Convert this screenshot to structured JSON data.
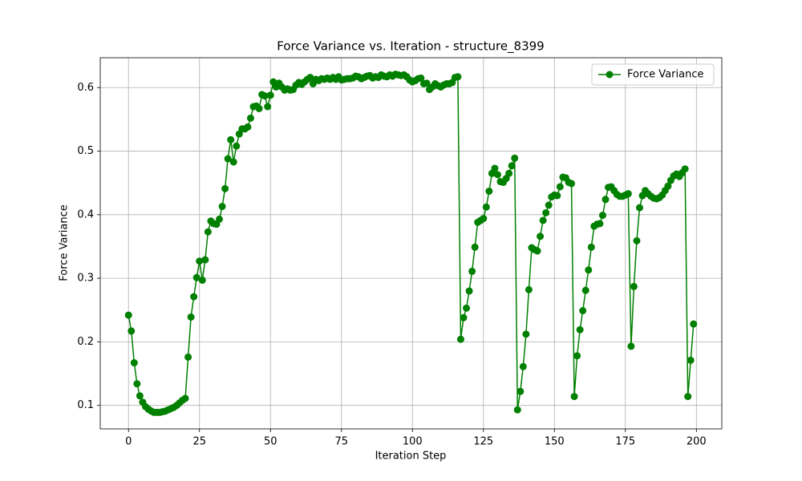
{
  "chart_data": {
    "type": "line",
    "title": "Force Variance vs. Iteration - structure_8399",
    "x_label": "Iteration Step",
    "y_label": "Force Variance",
    "x": [
      0,
      1,
      2,
      3,
      4,
      5,
      6,
      7,
      8,
      9,
      10,
      11,
      12,
      13,
      14,
      15,
      16,
      17,
      18,
      19,
      20,
      21,
      22,
      23,
      24,
      25,
      26,
      27,
      28,
      29,
      30,
      31,
      32,
      33,
      34,
      35,
      36,
      37,
      38,
      39,
      40,
      41,
      42,
      43,
      44,
      45,
      46,
      47,
      48,
      49,
      50,
      51,
      52,
      53,
      54,
      55,
      56,
      57,
      58,
      59,
      60,
      61,
      62,
      63,
      64,
      65,
      66,
      67,
      68,
      69,
      70,
      71,
      72,
      73,
      74,
      75,
      76,
      77,
      78,
      79,
      80,
      81,
      82,
      83,
      84,
      85,
      86,
      87,
      88,
      89,
      90,
      91,
      92,
      93,
      94,
      95,
      96,
      97,
      98,
      99,
      100,
      101,
      102,
      103,
      104,
      105,
      106,
      107,
      108,
      109,
      110,
      111,
      112,
      113,
      114,
      115,
      116,
      117,
      118,
      119,
      120,
      121,
      122,
      123,
      124,
      125,
      126,
      127,
      128,
      129,
      130,
      131,
      132,
      133,
      134,
      135,
      136,
      137,
      138,
      139,
      140,
      141,
      142,
      143,
      144,
      145,
      146,
      147,
      148,
      149,
      150,
      151,
      152,
      153,
      154,
      155,
      156,
      157,
      158,
      159,
      160,
      161,
      162,
      163,
      164,
      165,
      166,
      167,
      168,
      169,
      170,
      171,
      172,
      173,
      174,
      175,
      176,
      177,
      178,
      179,
      180,
      181,
      182,
      183,
      184,
      185,
      186,
      187,
      188,
      189,
      190,
      191,
      192,
      193,
      194,
      195,
      196,
      197,
      198,
      199
    ],
    "series": [
      {
        "name": "Force Variance",
        "color": "#008000",
        "values": [
          0.242,
          0.217,
          0.167,
          0.134,
          0.115,
          0.105,
          0.098,
          0.094,
          0.091,
          0.089,
          0.089,
          0.089,
          0.09,
          0.091,
          0.093,
          0.095,
          0.097,
          0.1,
          0.104,
          0.108,
          0.111,
          0.176,
          0.239,
          0.271,
          0.301,
          0.327,
          0.297,
          0.329,
          0.373,
          0.39,
          0.386,
          0.385,
          0.393,
          0.413,
          0.441,
          0.488,
          0.518,
          0.483,
          0.508,
          0.527,
          0.535,
          0.535,
          0.538,
          0.552,
          0.57,
          0.571,
          0.567,
          0.589,
          0.587,
          0.57,
          0.588,
          0.609,
          0.601,
          0.607,
          0.601,
          0.596,
          0.598,
          0.596,
          0.597,
          0.604,
          0.608,
          0.605,
          0.609,
          0.613,
          0.616,
          0.606,
          0.613,
          0.611,
          0.614,
          0.613,
          0.615,
          0.613,
          0.616,
          0.613,
          0.617,
          0.612,
          0.613,
          0.614,
          0.614,
          0.615,
          0.618,
          0.617,
          0.614,
          0.616,
          0.618,
          0.619,
          0.615,
          0.617,
          0.616,
          0.62,
          0.618,
          0.617,
          0.62,
          0.618,
          0.621,
          0.62,
          0.619,
          0.62,
          0.617,
          0.612,
          0.609,
          0.611,
          0.614,
          0.615,
          0.606,
          0.607,
          0.597,
          0.601,
          0.606,
          0.603,
          0.601,
          0.604,
          0.606,
          0.606,
          0.608,
          0.616,
          0.617,
          0.204,
          0.238,
          0.253,
          0.28,
          0.311,
          0.349,
          0.388,
          0.391,
          0.394,
          0.412,
          0.437,
          0.465,
          0.473,
          0.463,
          0.452,
          0.451,
          0.457,
          0.465,
          0.477,
          0.489,
          0.093,
          0.122,
          0.161,
          0.212,
          0.282,
          0.348,
          0.345,
          0.343,
          0.366,
          0.391,
          0.403,
          0.415,
          0.428,
          0.431,
          0.43,
          0.444,
          0.459,
          0.458,
          0.451,
          0.449,
          0.114,
          0.178,
          0.219,
          0.249,
          0.281,
          0.313,
          0.349,
          0.382,
          0.385,
          0.386,
          0.399,
          0.424,
          0.443,
          0.444,
          0.438,
          0.432,
          0.429,
          0.429,
          0.431,
          0.433,
          0.193,
          0.287,
          0.359,
          0.411,
          0.43,
          0.438,
          0.433,
          0.429,
          0.426,
          0.425,
          0.427,
          0.431,
          0.438,
          0.445,
          0.454,
          0.461,
          0.464,
          0.46,
          0.466,
          0.472,
          0.114,
          0.171,
          0.228
        ]
      }
    ],
    "xlim": [
      -9.95,
      208.95
    ],
    "ylim": [
      0.063,
      0.647
    ],
    "xticks": [
      0,
      25,
      50,
      75,
      100,
      125,
      150,
      175,
      200
    ],
    "yticks": [
      0.1,
      0.2,
      0.3,
      0.4,
      0.5,
      0.6
    ],
    "grid": true,
    "legend": "upper right"
  }
}
